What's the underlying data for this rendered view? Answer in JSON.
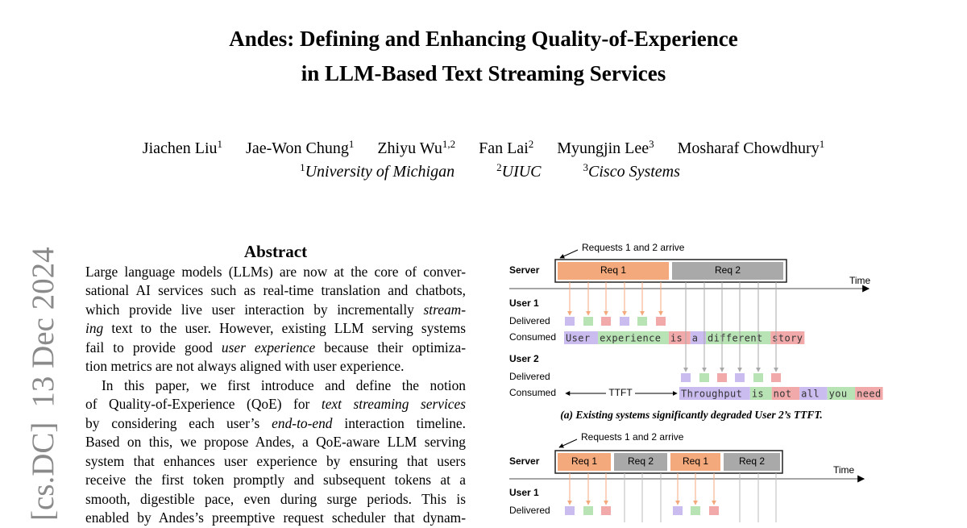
{
  "title_lines": [
    "Andes: Defining and Enhancing Quality-of-Experience",
    "in LLM-Based Text Streaming Services"
  ],
  "authors": [
    {
      "name": "Jiachen Liu",
      "sup": "1"
    },
    {
      "name": "Jae-Won Chung",
      "sup": "1"
    },
    {
      "name": "Zhiyu Wu",
      "sup": "1,2"
    },
    {
      "name": "Fan Lai",
      "sup": "2"
    },
    {
      "name": "Myungjin Lee",
      "sup": "3"
    },
    {
      "name": "Mosharaf Chowdhury",
      "sup": "1"
    }
  ],
  "affiliations": [
    {
      "sup": "1",
      "name": "University of Michigan"
    },
    {
      "sup": "2",
      "name": "UIUC"
    },
    {
      "sup": "3",
      "name": "Cisco Systems"
    }
  ],
  "arxiv_stamp": {
    "category": "[cs.DC]",
    "date": "13 Dec 2024"
  },
  "abstract": {
    "heading": "Abstract",
    "paragraphs": [
      [
        [
          "Large language models (LLMs) are now at the core of conver-"
        ],
        [
          "sational AI services such as real-time translation and chatbots,"
        ],
        [
          "which provide live user interaction by incrementally ",
          {
            "em": "stream-"
          }
        ],
        [
          {
            "em": "ing"
          },
          " text to the user. However, existing LLM serving systems"
        ],
        [
          "fail to provide good ",
          {
            "em": "user experience"
          },
          " because their optimiza-"
        ],
        [
          "tion metrics are not always aligned with user experience."
        ]
      ],
      [
        [
          "In this paper, we first introduce and define the notion"
        ],
        [
          "of Quality-of-Experience (QoE) for ",
          {
            "em": "text streaming services"
          }
        ],
        [
          "by considering each user’s ",
          {
            "em": "end-to-end"
          },
          " interaction timeline."
        ],
        [
          "Based on this, we propose Andes, a QoE-aware LLM serving"
        ],
        [
          "system that enhances user experience by ensuring that users"
        ],
        [
          "receive the first token promptly and subsequent tokens at a"
        ],
        [
          "smooth, digestible pace, even during surge periods. This is"
        ],
        [
          "enabled by Andes’s preemptive request scheduler that dynam-"
        ]
      ]
    ]
  },
  "figure": {
    "panel_a": {
      "arrive_label": "Requests 1 and 2 arrive",
      "server_label": "Server",
      "requests": [
        {
          "label": "Req 1",
          "color": "#f4a97c"
        },
        {
          "label": "Req 2",
          "color": "#a9a9a9"
        }
      ],
      "time_label": "Time",
      "ttft_label": "TTFT",
      "users": [
        {
          "name": "User 1",
          "delivered_label": "Delivered",
          "consumed_label": "Consumed",
          "arrow_color": "#f4a97c",
          "words": [
            {
              "text": "User",
              "color": "#cbbcf0"
            },
            {
              "text": "experience",
              "color": "#b8e3b5"
            },
            {
              "text": "is",
              "color": "#f2a9aa"
            },
            {
              "text": "a",
              "color": "#cbbcf0"
            },
            {
              "text": "different",
              "color": "#b8e3b5"
            },
            {
              "text": "story",
              "color": "#f2a9aa"
            }
          ]
        },
        {
          "name": "User 2",
          "delivered_label": "Delivered",
          "consumed_label": "Consumed",
          "arrow_color": "#a9a9a9",
          "words": [
            {
              "text": "Throughput",
              "color": "#cbbcf0"
            },
            {
              "text": "is",
              "color": "#b8e3b5"
            },
            {
              "text": "not",
              "color": "#f2a9aa"
            },
            {
              "text": "all",
              "color": "#cbbcf0"
            },
            {
              "text": "you",
              "color": "#b8e3b5"
            },
            {
              "text": "need",
              "color": "#f2a9aa"
            }
          ]
        }
      ],
      "caption": "(a) Existing systems significantly degraded User 2’s TTFT."
    },
    "panel_b": {
      "arrive_label": "Requests 1 and 2 arrive",
      "server_label": "Server",
      "requests": [
        {
          "label": "Req 1",
          "color": "#f4a97c"
        },
        {
          "label": "Req 2",
          "color": "#a9a9a9"
        },
        {
          "label": "Req 1",
          "color": "#f4a97c"
        },
        {
          "label": "Req 2",
          "color": "#a9a9a9"
        }
      ],
      "time_label": "Time",
      "users": [
        {
          "name": "User 1",
          "delivered_label": "Delivered",
          "arrow_color": "#f4a97c",
          "delivered_colors": [
            "#cbbcf0",
            "#b8e3b5",
            "#f2a9aa",
            "#cbbcf0",
            "#b8e3b5",
            "#f2a9aa"
          ]
        }
      ]
    }
  }
}
